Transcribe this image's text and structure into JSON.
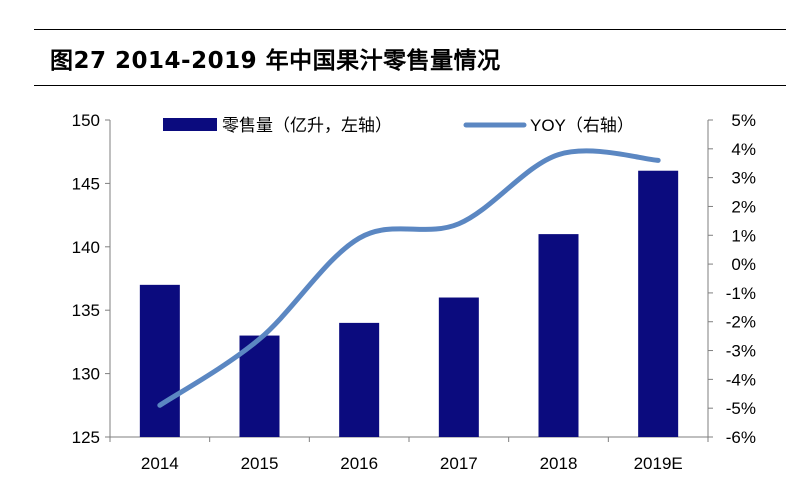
{
  "title": "图27 2014-2019 年中国果汁零售量情况",
  "colors": {
    "bar": "#0b0b7e",
    "line": "#5b87c2",
    "axis": "#7f7f7f",
    "text": "#000000"
  },
  "chart_data": {
    "type": "bar+line",
    "categories": [
      "2014",
      "2015",
      "2016",
      "2017",
      "2018",
      "2019E"
    ],
    "series": [
      {
        "name": "零售量（亿升，左轴）",
        "type": "bar",
        "axis": "left",
        "values": [
          137,
          133,
          134,
          136,
          141,
          146
        ]
      },
      {
        "name": "YOY（右轴）",
        "type": "line",
        "axis": "right",
        "smooth": true,
        "values": [
          -4.9,
          -2.6,
          0.9,
          1.4,
          3.8,
          3.6
        ]
      }
    ],
    "y_left": {
      "min": 125,
      "max": 150,
      "ticks": [
        "125",
        "130",
        "135",
        "140",
        "145",
        "150"
      ]
    },
    "y_right": {
      "min": -6,
      "max": 5,
      "ticks": [
        "-6%",
        "-5%",
        "-4%",
        "-3%",
        "-2%",
        "-1%",
        "0%",
        "1%",
        "2%",
        "3%",
        "4%",
        "5%"
      ]
    },
    "grid": false,
    "legend": "top"
  }
}
